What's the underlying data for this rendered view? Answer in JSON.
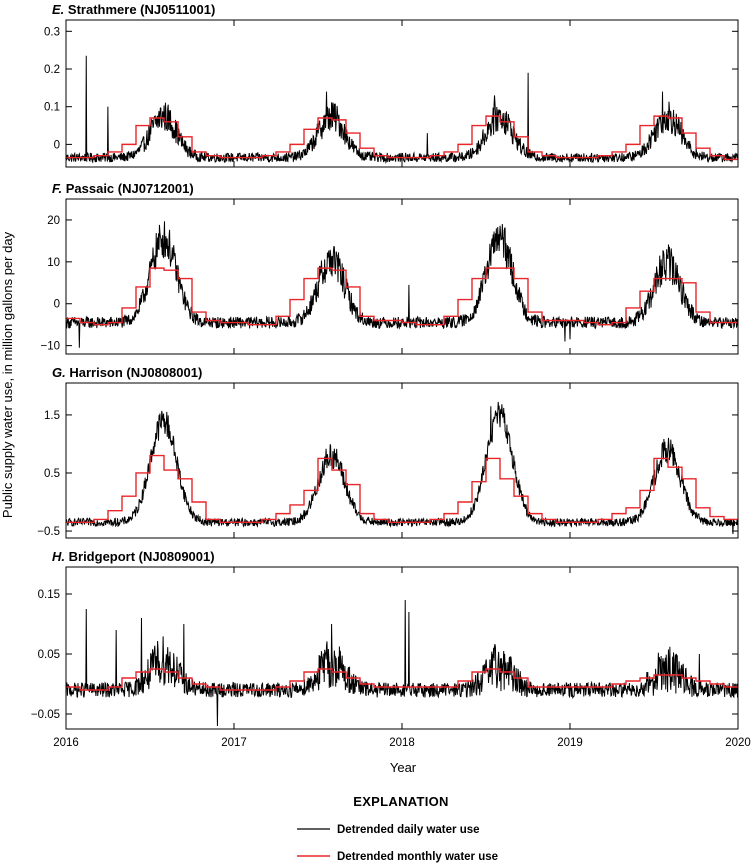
{
  "colors": {
    "daily": "#000000",
    "monthly": "#e8262a",
    "frame": "#000000"
  },
  "figure": {
    "ylabel": "Public supply water use, in million gallons per day",
    "xlabel": "Year",
    "x_ticks": [
      "2016",
      "2017",
      "2018",
      "2019",
      "2020"
    ],
    "legend_title": "EXPLANATION",
    "legend_daily": "Detrended daily water use",
    "legend_monthly": "Detrended monthly water use"
  },
  "chart_data": [
    {
      "type": "line",
      "panel": "E.",
      "title": "Strathmere (NJ0511001)",
      "xlim": [
        2016,
        2020
      ],
      "ylim": [
        -0.06,
        0.33
      ],
      "yticks": [
        0,
        0.1,
        0.2,
        0.3
      ],
      "ytick_labels": [
        "0",
        "0.1",
        "0.2",
        "0.3"
      ],
      "series": [
        {
          "name": "Detrended daily water use",
          "shape": "seasonal-daily",
          "params": {
            "base": -0.035,
            "amps": [
              0.11,
              0.11,
              0.11,
              0.11
            ],
            "noise": 0.025,
            "spikes": [
              [
                2016.12,
                0.235
              ],
              [
                2016.25,
                0.1
              ],
              [
                2017.55,
                0.14
              ],
              [
                2018.55,
                0.13
              ],
              [
                2018.75,
                0.19
              ],
              [
                2019.55,
                0.14
              ],
              [
                2018.15,
                0.03
              ]
            ]
          }
        },
        {
          "name": "Detrended monthly water use",
          "monthly_by_year": [
            [
              -0.035,
              -0.035,
              -0.03,
              -0.02,
              0.0,
              0.05,
              0.07,
              0.06,
              0.02,
              -0.02,
              -0.03,
              -0.035
            ],
            [
              -0.035,
              -0.035,
              -0.03,
              -0.02,
              0.0,
              0.04,
              0.07,
              0.065,
              0.03,
              -0.01,
              -0.03,
              -0.035
            ],
            [
              -0.035,
              -0.035,
              -0.03,
              -0.02,
              0.0,
              0.05,
              0.075,
              0.06,
              0.02,
              -0.02,
              -0.03,
              -0.035
            ],
            [
              -0.035,
              -0.035,
              -0.03,
              -0.02,
              0.0,
              0.05,
              0.075,
              0.07,
              0.03,
              -0.01,
              -0.03,
              -0.04
            ]
          ]
        }
      ]
    },
    {
      "type": "line",
      "panel": "F.",
      "title": "Passaic (NJ0712001)",
      "xlim": [
        2016,
        2020
      ],
      "ylim": [
        -12,
        25
      ],
      "yticks": [
        -10,
        0,
        10,
        20
      ],
      "ytick_labels": [
        "−10",
        "0",
        "10",
        "20"
      ],
      "series": [
        {
          "name": "Detrended daily water use",
          "shape": "seasonal-daily",
          "params": {
            "base": -4.5,
            "amps": [
              20,
              15,
              20,
              14
            ],
            "noise": 2.8,
            "spikes": [
              [
                2016.08,
                -10.5
              ],
              [
                2018.04,
                4.5
              ],
              [
                2018.97,
                -9.0
              ],
              [
                2019.0,
                -8.5
              ]
            ]
          }
        },
        {
          "name": "Detrended monthly water use",
          "monthly_by_year": [
            [
              -3.5,
              -4.5,
              -5.0,
              -4.5,
              -1.0,
              4.0,
              8.5,
              8.0,
              6.0,
              -2.0,
              -4.0,
              -4.5
            ],
            [
              -4.5,
              -5.0,
              -5.0,
              -3.0,
              1.0,
              6.0,
              8.5,
              8.0,
              4.0,
              -3.0,
              -4.0,
              -4.0
            ],
            [
              -4.5,
              -5.0,
              -5.0,
              -3.0,
              1.0,
              6.0,
              8.5,
              8.5,
              6.0,
              -2.0,
              -4.0,
              -4.0
            ],
            [
              -4.0,
              -4.5,
              -5.0,
              -4.5,
              -1.0,
              3.0,
              6.0,
              6.0,
              5.0,
              -2.0,
              -4.5,
              -4.5
            ]
          ]
        }
      ]
    },
    {
      "type": "line",
      "panel": "G.",
      "title": "Harrison (NJ0808001)",
      "xlim": [
        2016,
        2020
      ],
      "ylim": [
        -0.62,
        2.05
      ],
      "yticks": [
        -0.5,
        0.5,
        1.5
      ],
      "ytick_labels": [
        "−0.5",
        "0.5",
        "1.5"
      ],
      "series": [
        {
          "name": "Detrended daily water use",
          "shape": "seasonal-daily",
          "params": {
            "base": -0.35,
            "amps": [
              1.75,
              1.15,
              1.85,
              1.25
            ],
            "noise": 0.14,
            "spikes": [
              [
                2018.53,
                1.65
              ],
              [
                2018.56,
                1.55
              ],
              [
                2019.97,
                -0.55
              ]
            ]
          }
        },
        {
          "name": "Detrended monthly water use",
          "monthly_by_year": [
            [
              -0.35,
              -0.35,
              -0.3,
              -0.15,
              0.1,
              0.5,
              0.8,
              0.55,
              0.4,
              0.0,
              -0.3,
              -0.35
            ],
            [
              -0.35,
              -0.35,
              -0.3,
              -0.2,
              -0.05,
              0.2,
              0.75,
              0.55,
              0.3,
              -0.2,
              -0.3,
              -0.35
            ],
            [
              -0.35,
              -0.35,
              -0.3,
              -0.2,
              0.0,
              0.35,
              0.75,
              0.4,
              0.1,
              -0.2,
              -0.3,
              -0.35
            ],
            [
              -0.35,
              -0.35,
              -0.3,
              -0.2,
              -0.1,
              0.2,
              0.75,
              0.6,
              0.4,
              -0.1,
              -0.25,
              -0.3
            ]
          ]
        }
      ]
    },
    {
      "type": "line",
      "panel": "H.",
      "title": "Bridgeport (NJ0809001)",
      "xlim": [
        2016,
        2020
      ],
      "ylim": [
        -0.075,
        0.195
      ],
      "yticks": [
        -0.05,
        0.05,
        0.15
      ],
      "ytick_labels": [
        "−0.05",
        "0.05",
        "0.15"
      ],
      "series": [
        {
          "name": "Detrended daily water use",
          "shape": "seasonal-daily",
          "params": {
            "base": -0.01,
            "amps": [
              0.05,
              0.045,
              0.04,
              0.035
            ],
            "noise": 0.025,
            "spikes": [
              [
                2016.12,
                0.125
              ],
              [
                2016.3,
                0.09
              ],
              [
                2016.45,
                0.11
              ],
              [
                2016.7,
                0.1
              ],
              [
                2016.9,
                -0.07
              ],
              [
                2017.58,
                0.1
              ],
              [
                2018.02,
                0.14
              ],
              [
                2018.04,
                0.12
              ],
              [
                2019.77,
                0.05
              ]
            ]
          }
        },
        {
          "name": "Detrended monthly water use",
          "monthly_by_year": [
            [
              -0.005,
              -0.01,
              -0.01,
              -0.005,
              0.01,
              0.02,
              0.025,
              0.02,
              0.01,
              0.0,
              -0.005,
              -0.01
            ],
            [
              -0.01,
              -0.01,
              -0.01,
              -0.005,
              0.005,
              0.02,
              0.025,
              0.02,
              0.01,
              0.0,
              -0.005,
              -0.005
            ],
            [
              -0.005,
              -0.005,
              -0.005,
              -0.005,
              0.005,
              0.02,
              0.025,
              0.02,
              0.01,
              -0.005,
              -0.005,
              -0.005
            ],
            [
              -0.005,
              -0.005,
              -0.005,
              0.0,
              0.005,
              0.01,
              0.015,
              0.015,
              0.01,
              0.005,
              0.0,
              -0.005
            ]
          ]
        }
      ]
    }
  ]
}
